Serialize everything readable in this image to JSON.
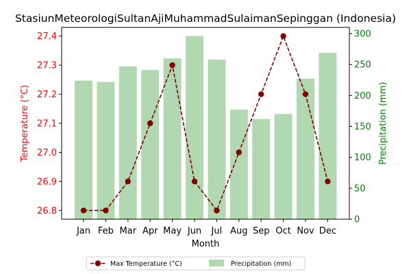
{
  "colors": {
    "temperature": "#800000",
    "precipitation": "#b2d8b2",
    "left_axis": "#ff0000",
    "right_axis": "#008000"
  },
  "chart_data": {
    "type": "bar",
    "title": "StasiunMeteorologiSultanAjiMuhammadSulaimanSepinggan (Indonesia)",
    "xlabel": "Month",
    "categories": [
      "Jan",
      "Feb",
      "Mar",
      "Apr",
      "May",
      "Jun",
      "Jul",
      "Aug",
      "Sep",
      "Oct",
      "Nov",
      "Dec"
    ],
    "y_left": {
      "label": "Temperature (°C)",
      "ylim": [
        26.77,
        27.43
      ],
      "ticks": [
        "26.8",
        "26.9",
        "27.0",
        "27.1",
        "27.2",
        "27.3",
        "27.4"
      ]
    },
    "y_right": {
      "label": "Precipitation (mm)",
      "ylim": [
        0,
        310
      ],
      "ticks": [
        "0",
        "50",
        "100",
        "150",
        "200",
        "250",
        "300"
      ]
    },
    "series": [
      {
        "name": "Max Temperature (°C)",
        "type": "line",
        "axis": "left",
        "style": "dashed line with circle markers",
        "values": [
          26.8,
          26.8,
          26.9,
          27.1,
          27.3,
          26.9,
          26.8,
          27.0,
          27.2,
          27.4,
          27.2,
          26.9
        ]
      },
      {
        "name": "Precipitation (mm)",
        "type": "bar",
        "axis": "right",
        "values": [
          224,
          222,
          247,
          241,
          260,
          296,
          258,
          177,
          162,
          170,
          227,
          269
        ]
      }
    ],
    "grid": false,
    "legend": "bottom-center, below chart"
  }
}
